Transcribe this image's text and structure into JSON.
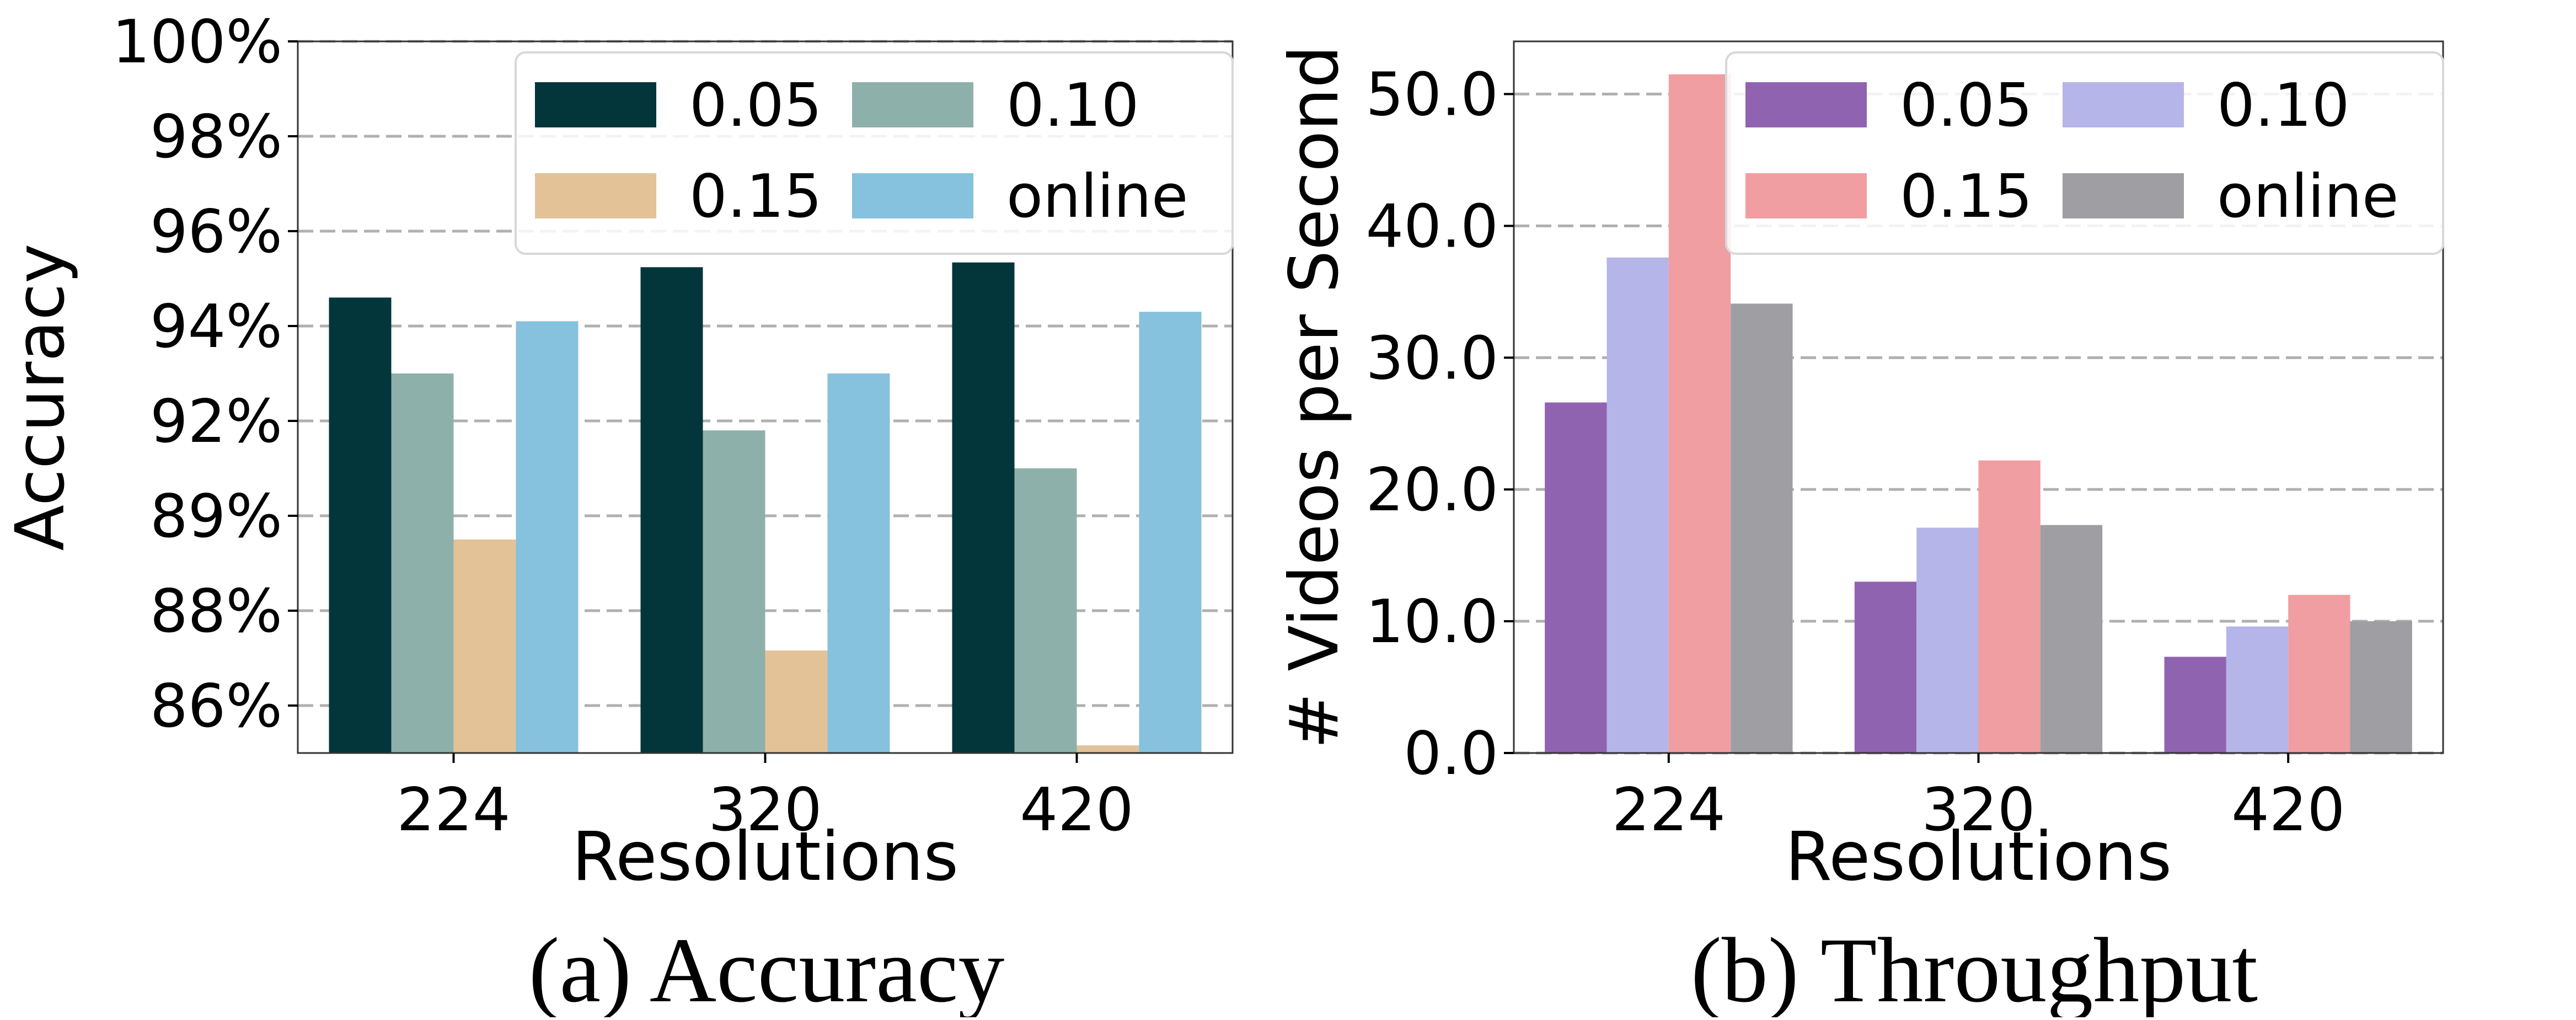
{
  "chart_data": [
    {
      "type": "bar",
      "caption": "(a) Accuracy",
      "xlabel": "Resolutions",
      "ylabel": "Accuracy",
      "categories": [
        "224",
        "320",
        "420"
      ],
      "yticks": [
        {
          "label": "86%",
          "value": 0
        },
        {
          "label": "88%",
          "value": 1
        },
        {
          "label": "89%",
          "value": 2
        },
        {
          "label": "92%",
          "value": 3
        },
        {
          "label": "94%",
          "value": 4
        },
        {
          "label": "96%",
          "value": 5
        },
        {
          "label": "98%",
          "value": 6
        },
        {
          "label": "100%",
          "value": 7
        }
      ],
      "ylim": [
        -0.5,
        7
      ],
      "grid": true,
      "legend_position": "top-right",
      "series": [
        {
          "name": "0.05",
          "color": "#02363a",
          "values": [
            4.3,
            4.62,
            4.67
          ]
        },
        {
          "name": "0.10",
          "color": "#8eb0ab",
          "values": [
            3.5,
            2.9,
            2.5
          ]
        },
        {
          "name": "0.15",
          "color": "#e3c298",
          "values": [
            1.75,
            0.58,
            -0.42
          ]
        },
        {
          "name": "online",
          "color": "#86c1dd",
          "values": [
            4.05,
            3.5,
            4.15
          ]
        }
      ]
    },
    {
      "type": "bar",
      "caption": "(b) Throughput",
      "xlabel": "Resolutions",
      "ylabel": "# Videos per Second",
      "categories": [
        "224",
        "320",
        "420"
      ],
      "yticks": [
        {
          "label": "0.0",
          "value": 0
        },
        {
          "label": "10.0",
          "value": 10
        },
        {
          "label": "20.0",
          "value": 20
        },
        {
          "label": "30.0",
          "value": 30
        },
        {
          "label": "40.0",
          "value": 40
        },
        {
          "label": "50.0",
          "value": 50
        }
      ],
      "ylim": [
        0,
        54
      ],
      "grid": true,
      "legend_position": "top-right",
      "series": [
        {
          "name": "0.05",
          "color": "#9063b1",
          "values": [
            26.6,
            13.0,
            7.3
          ]
        },
        {
          "name": "0.10",
          "color": "#b5b5e9",
          "values": [
            37.6,
            17.1,
            9.6
          ]
        },
        {
          "name": "0.15",
          "color": "#f09ea1",
          "values": [
            51.5,
            22.2,
            12.0
          ]
        },
        {
          "name": "online",
          "color": "#9e9ea3",
          "values": [
            34.1,
            17.3,
            10.0
          ]
        }
      ]
    }
  ]
}
